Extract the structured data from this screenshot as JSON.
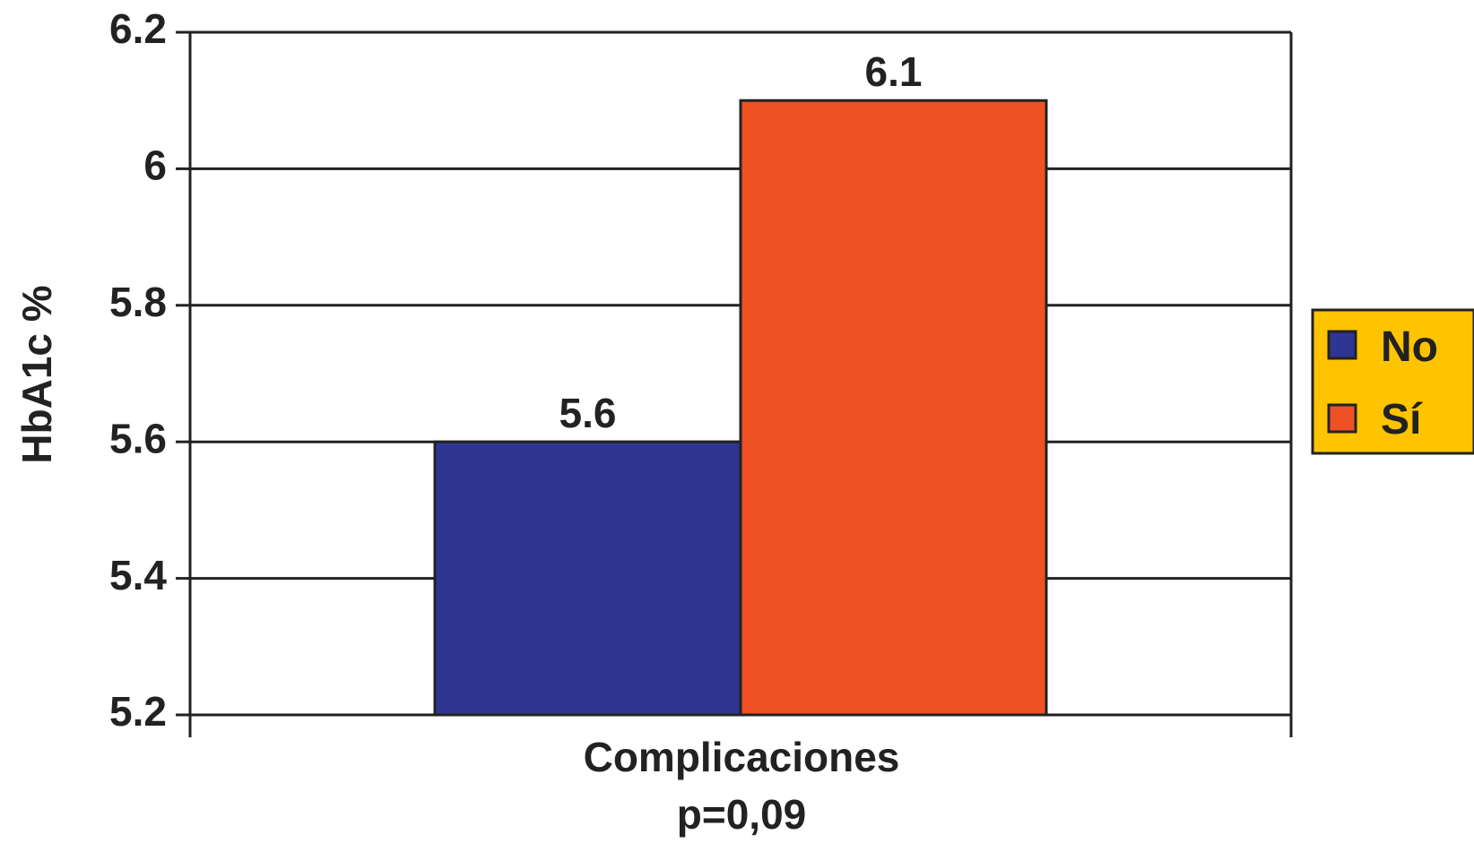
{
  "chart_data": {
    "type": "bar",
    "categories": [
      "Complicaciones"
    ],
    "x_sublabel": "p=0,09",
    "series": [
      {
        "name": "No",
        "values": [
          5.6
        ],
        "color": "#2e3592"
      },
      {
        "name": "Sí",
        "values": [
          6.1
        ],
        "color": "#ef5125"
      }
    ],
    "data_labels": [
      "5.6",
      "6.1"
    ],
    "ylabel": "HbA1c %",
    "xlabel": "",
    "ylim": [
      5.2,
      6.2
    ],
    "yticks": [
      "5.2",
      "5.4",
      "5.6",
      "5.8",
      "6",
      "6.2"
    ],
    "grid": true,
    "legend": {
      "position": "right",
      "background": "#ffc400"
    }
  }
}
